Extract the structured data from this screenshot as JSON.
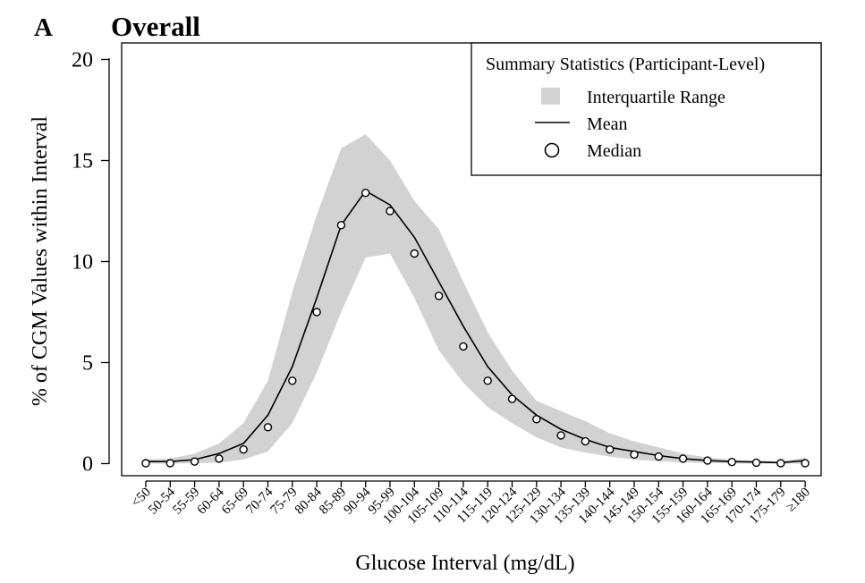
{
  "panel_letter": "A",
  "chart_data": {
    "type": "line",
    "title": "Overall",
    "xlabel": "Glucose Interval (mg/dL)",
    "ylabel": "% of CGM Values within Interval",
    "ylim": [
      0,
      20
    ],
    "yticks": [
      0,
      5,
      10,
      15,
      20
    ],
    "grid": false,
    "legend_position": "top-right",
    "legend_title": "Summary Statistics (Participant-Level)",
    "legend": {
      "iqr": "Interquartile Range",
      "mean": "Mean",
      "median": "Median"
    },
    "categories": [
      "<50",
      "50-54",
      "55-59",
      "60-64",
      "65-69",
      "70-74",
      "75-79",
      "80-84",
      "85-89",
      "90-94",
      "95-99",
      "100-104",
      "105-109",
      "110-114",
      "115-119",
      "120-124",
      "125-129",
      "130-134",
      "135-139",
      "140-144",
      "145-149",
      "150-154",
      "155-159",
      "160-164",
      "165-169",
      "170-174",
      "175-179",
      "≥180"
    ],
    "series": [
      {
        "name": "Mean",
        "kind": "line",
        "values": [
          0.1,
          0.1,
          0.2,
          0.5,
          1.0,
          2.4,
          4.8,
          8.2,
          11.8,
          13.5,
          12.8,
          11.2,
          9.0,
          6.8,
          4.8,
          3.4,
          2.4,
          1.7,
          1.2,
          0.8,
          0.6,
          0.4,
          0.25,
          0.15,
          0.1,
          0.08,
          0.05,
          0.15
        ]
      },
      {
        "name": "Median",
        "kind": "points",
        "values": [
          0.02,
          0.02,
          0.1,
          0.25,
          0.7,
          1.8,
          4.1,
          7.5,
          11.8,
          13.4,
          12.5,
          10.4,
          8.3,
          5.8,
          4.1,
          3.2,
          2.2,
          1.4,
          1.1,
          0.7,
          0.45,
          0.35,
          0.25,
          0.15,
          0.08,
          0.05,
          0.02,
          0.02
        ]
      },
      {
        "name": "Interquartile Range",
        "kind": "band",
        "lower": [
          0,
          0,
          0.02,
          0.05,
          0.2,
          0.6,
          2.0,
          4.5,
          7.5,
          10.2,
          10.4,
          8.2,
          5.6,
          4.0,
          2.8,
          2.0,
          1.3,
          0.8,
          0.55,
          0.35,
          0.2,
          0.12,
          0.06,
          0.03,
          0.01,
          0,
          0,
          0
        ],
        "upper": [
          0.2,
          0.25,
          0.5,
          1.0,
          2.0,
          4.1,
          8.5,
          12.3,
          15.6,
          16.3,
          15.0,
          13.0,
          11.6,
          9.0,
          6.5,
          4.6,
          3.1,
          2.6,
          2.1,
          1.5,
          1.1,
          0.8,
          0.5,
          0.3,
          0.2,
          0.15,
          0.1,
          0.3
        ]
      }
    ]
  }
}
